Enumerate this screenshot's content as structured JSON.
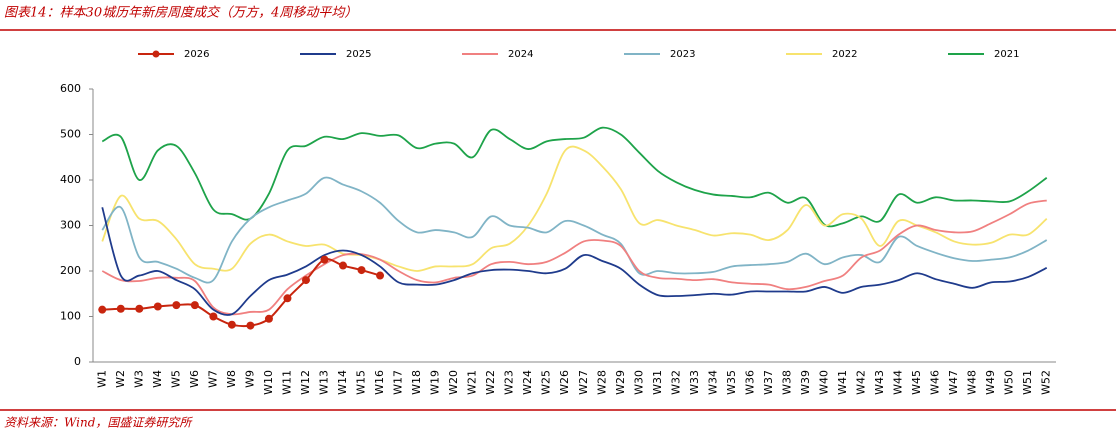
{
  "chart_data": {
    "type": "line",
    "title": "图表14：样本30城历年新房周度成交（万方，4周移动平均）",
    "source": "资料来源：Wind，国盛证券研究所",
    "categories": [
      "W1",
      "W2",
      "W3",
      "W4",
      "W5",
      "W6",
      "W7",
      "W8",
      "W9",
      "W10",
      "W11",
      "W12",
      "W13",
      "W14",
      "W15",
      "W16",
      "W17",
      "W18",
      "W19",
      "W20",
      "W21",
      "W22",
      "W23",
      "W24",
      "W25",
      "W26",
      "W27",
      "W28",
      "W29",
      "W30",
      "W31",
      "W32",
      "W33",
      "W34",
      "W35",
      "W36",
      "W37",
      "W38",
      "W39",
      "W40",
      "W41",
      "W42",
      "W43",
      "W44",
      "W45",
      "W46",
      "W47",
      "W48",
      "W49",
      "W50",
      "W51",
      "W52"
    ],
    "ylim": [
      0,
      600
    ],
    "yticks": [
      0,
      100,
      200,
      300,
      400,
      500,
      600
    ],
    "grid": false,
    "legend": "top",
    "series": [
      {
        "name": "2026",
        "color": "#c8250e",
        "markers": true,
        "values": [
          115,
          117,
          117,
          122,
          125,
          125,
          100,
          82,
          80,
          95,
          140,
          180,
          225,
          212,
          202,
          190,
          null,
          null,
          null,
          null,
          null,
          null,
          null,
          null,
          null,
          null,
          null,
          null,
          null,
          null,
          null,
          null,
          null,
          null,
          null,
          null,
          null,
          null,
          null,
          null,
          null,
          null,
          null,
          null,
          null,
          null,
          null,
          null,
          null,
          null,
          null,
          null
        ]
      },
      {
        "name": "2025",
        "color": "#1f3b8c",
        "values": [
          340,
          190,
          190,
          200,
          180,
          160,
          115,
          105,
          145,
          180,
          192,
          210,
          235,
          245,
          235,
          210,
          175,
          170,
          170,
          180,
          195,
          202,
          203,
          200,
          195,
          205,
          235,
          222,
          205,
          170,
          147,
          145,
          147,
          150,
          148,
          155,
          155,
          155,
          155,
          165,
          152,
          165,
          170,
          180,
          195,
          182,
          172,
          163,
          175,
          177,
          187,
          207
        ]
      },
      {
        "name": "2024",
        "color": "#f08080",
        "values": [
          200,
          180,
          178,
          185,
          185,
          178,
          120,
          105,
          110,
          115,
          160,
          190,
          215,
          235,
          237,
          225,
          200,
          180,
          175,
          185,
          190,
          215,
          220,
          215,
          220,
          240,
          265,
          267,
          255,
          200,
          185,
          183,
          180,
          182,
          175,
          172,
          170,
          160,
          165,
          178,
          190,
          230,
          245,
          280,
          300,
          290,
          285,
          287,
          305,
          325,
          348,
          355
        ]
      },
      {
        "name": "2023",
        "color": "#80b4c6",
        "values": [
          290,
          340,
          230,
          220,
          205,
          185,
          180,
          265,
          315,
          340,
          355,
          370,
          405,
          390,
          375,
          350,
          310,
          285,
          290,
          285,
          275,
          320,
          300,
          295,
          285,
          310,
          300,
          280,
          260,
          195,
          200,
          195,
          195,
          198,
          210,
          213,
          215,
          220,
          238,
          215,
          230,
          235,
          220,
          275,
          255,
          240,
          228,
          222,
          225,
          230,
          245,
          268
        ]
      },
      {
        "name": "2022",
        "color": "#f7e36e",
        "values": [
          265,
          365,
          315,
          310,
          270,
          215,
          205,
          205,
          260,
          280,
          265,
          255,
          258,
          238,
          235,
          225,
          210,
          200,
          210,
          210,
          215,
          250,
          260,
          300,
          370,
          465,
          465,
          430,
          380,
          305,
          312,
          300,
          290,
          278,
          283,
          280,
          268,
          290,
          345,
          300,
          325,
          315,
          255,
          310,
          300,
          285,
          265,
          258,
          262,
          280,
          280,
          315
        ]
      },
      {
        "name": "2021",
        "color": "#1ea34a",
        "values": [
          485,
          495,
          400,
          465,
          475,
          415,
          335,
          325,
          315,
          370,
          465,
          475,
          495,
          490,
          503,
          497,
          498,
          470,
          480,
          480,
          450,
          510,
          490,
          468,
          485,
          490,
          493,
          515,
          500,
          460,
          420,
          395,
          378,
          368,
          365,
          362,
          372,
          350,
          360,
          302,
          305,
          320,
          310,
          368,
          350,
          362,
          355,
          355,
          353,
          353,
          375,
          405
        ]
      }
    ]
  }
}
